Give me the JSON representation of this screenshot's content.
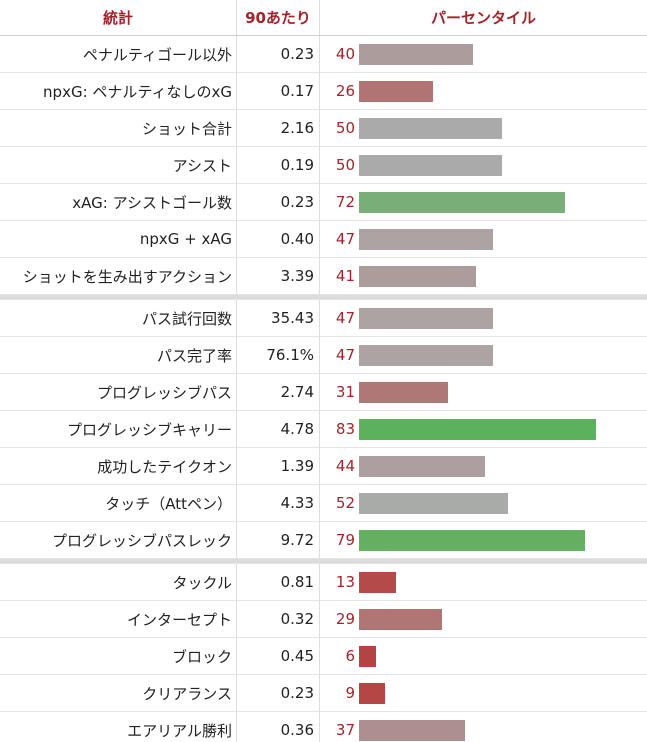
{
  "header": {
    "stat": "統計",
    "per90": "90あたり",
    "percentile": "パーセンタイル"
  },
  "groups": [
    {
      "rows": [
        {
          "stat": "ペナルティゴール以外",
          "per90": "0.23",
          "percentile": 40,
          "color": "#ad9c9c"
        },
        {
          "stat": "npxG: ペナルティなしのxG",
          "per90": "0.17",
          "percentile": 26,
          "color": "#b07474"
        },
        {
          "stat": "ショット合計",
          "per90": "2.16",
          "percentile": 50,
          "color": "#aaaaaa"
        },
        {
          "stat": "アシスト",
          "per90": "0.19",
          "percentile": 50,
          "color": "#aaaaaa"
        },
        {
          "stat": "xAG: アシストゴール数",
          "per90": "0.23",
          "percentile": 72,
          "color": "#7aae78"
        },
        {
          "stat": "npxG + xAG",
          "per90": "0.40",
          "percentile": 47,
          "color": "#ada3a3"
        },
        {
          "stat": "ショットを生み出すアクション",
          "per90": "3.39",
          "percentile": 41,
          "color": "#ad9c9c"
        }
      ]
    },
    {
      "rows": [
        {
          "stat": "パス試行回数",
          "per90": "35.43",
          "percentile": 47,
          "color": "#ada3a3"
        },
        {
          "stat": "パス完了率",
          "per90": "76.1%",
          "percentile": 47,
          "color": "#ada3a3"
        },
        {
          "stat": "プログレッシブパス",
          "per90": "2.74",
          "percentile": 31,
          "color": "#b07777"
        },
        {
          "stat": "プログレッシブキャリー",
          "per90": "4.78",
          "percentile": 83,
          "color": "#5cb25c"
        },
        {
          "stat": "成功したテイクオン",
          "per90": "1.39",
          "percentile": 44,
          "color": "#ad9f9f"
        },
        {
          "stat": "タッチ（Attペン）",
          "per90": "4.33",
          "percentile": 52,
          "color": "#a8aba8"
        },
        {
          "stat": "プログレッシブパスレック",
          "per90": "9.72",
          "percentile": 79,
          "color": "#62b060"
        }
      ]
    },
    {
      "rows": [
        {
          "stat": "タックル",
          "per90": "0.81",
          "percentile": 13,
          "color": "#b44a4a"
        },
        {
          "stat": "インターセプト",
          "per90": "0.32",
          "percentile": 29,
          "color": "#b07575"
        },
        {
          "stat": "ブロック",
          "per90": "0.45",
          "percentile": 6,
          "color": "#b44444"
        },
        {
          "stat": "クリアランス",
          "per90": "0.23",
          "percentile": 9,
          "color": "#b44646"
        },
        {
          "stat": "エアリアル勝利",
          "per90": "0.36",
          "percentile": 37,
          "color": "#ad8f8f"
        }
      ]
    }
  ]
}
